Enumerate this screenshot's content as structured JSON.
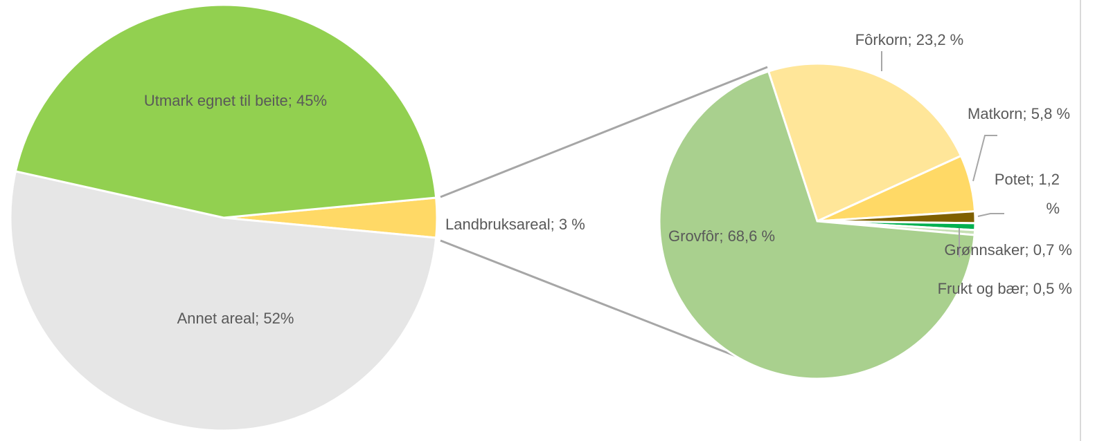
{
  "chart_data": [
    {
      "type": "pie",
      "value_labels": [
        "Landbruksareal; 3 %",
        "Annet areal; 52%",
        "Utmark egnet til beite; 45%"
      ],
      "values": [
        3,
        52,
        45
      ],
      "colors": [
        "#ffd966",
        "#e6e6e6",
        "#92d050"
      ]
    },
    {
      "type": "pie",
      "value_labels": [
        "Fôrkorn; 23,2 %",
        "Matkorn; 5,8 %",
        "Potet; 1,2 %",
        "Grønnsaker; 0,7 %",
        "Frukt og bær; 0,5 %",
        "Grovfôr; 68,6 %"
      ],
      "values": [
        23.2,
        5.8,
        1.2,
        0.7,
        0.5,
        68.6
      ],
      "colors": [
        "#ffe699",
        "#ffd966",
        "#7f6000",
        "#00b050",
        "#c6e0b4",
        "#a9d08e"
      ]
    }
  ]
}
